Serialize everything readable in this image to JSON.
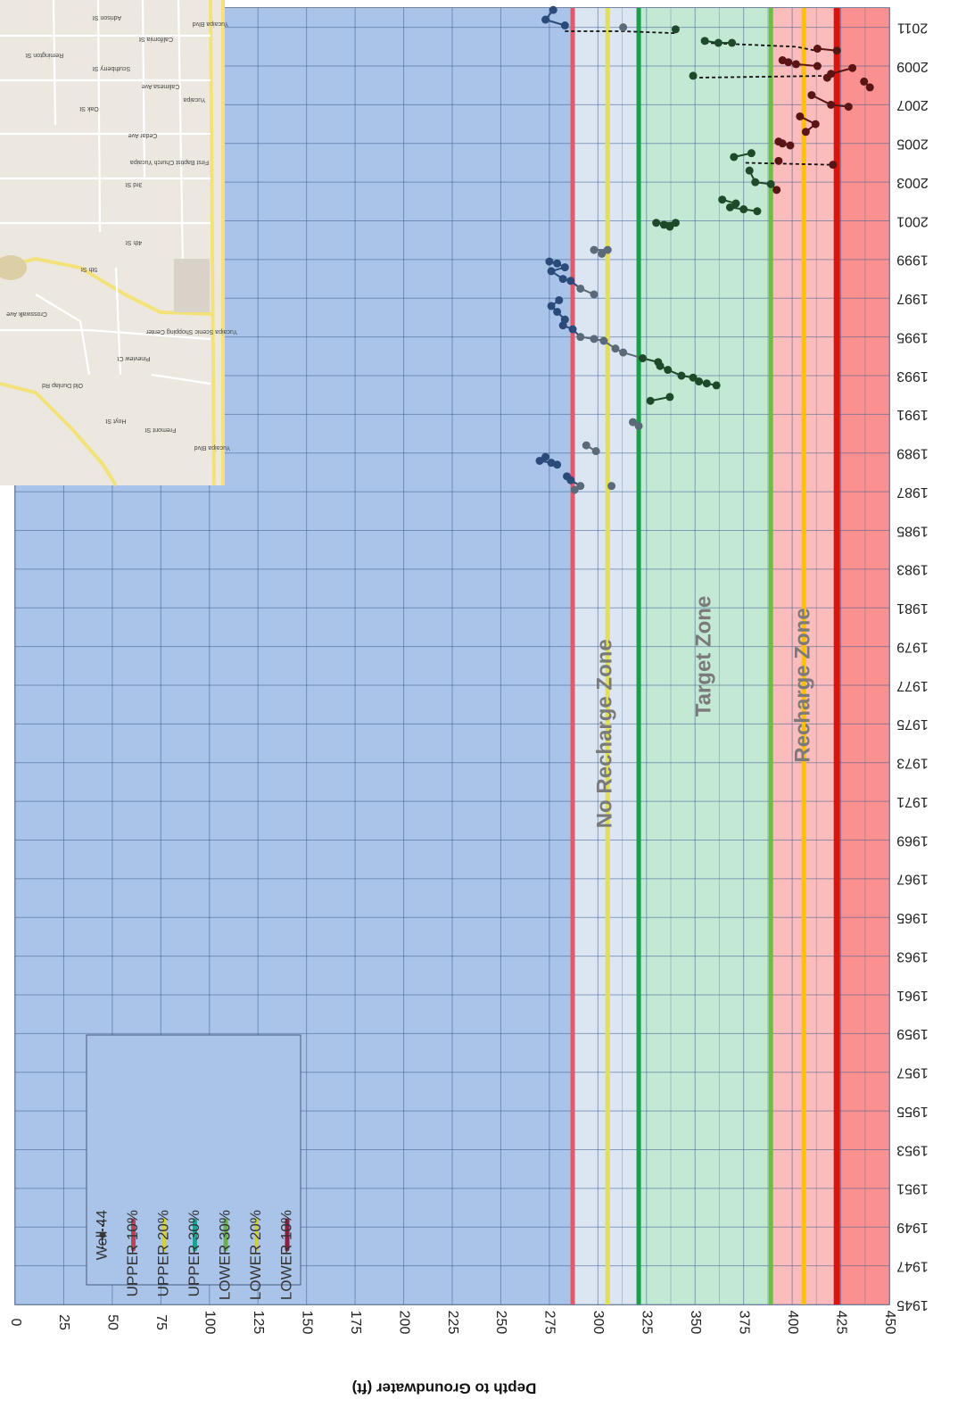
{
  "chart_data": {
    "type": "scatter",
    "title": "",
    "ylabel": "Depth to Groundwater (ft)",
    "xlabel": "",
    "x_axis": {
      "type": "year",
      "range": [
        1945,
        2012
      ],
      "tick_labels": [
        "1945",
        "1947",
        "1949",
        "1951",
        "1953",
        "1955",
        "1957",
        "1959",
        "1961",
        "1963",
        "1965",
        "1967",
        "1969",
        "1971",
        "1973",
        "1975",
        "1977",
        "1979",
        "1981",
        "1983",
        "1985",
        "1987",
        "1989",
        "1991",
        "1993",
        "1995",
        "1997",
        "1999",
        "2001",
        "2003",
        "2005",
        "2007",
        "2009",
        "2011"
      ]
    },
    "y_axis": {
      "range": [
        0,
        450
      ],
      "tick_labels": [
        "0",
        "25",
        "50",
        "75",
        "100",
        "125",
        "150",
        "175",
        "200",
        "225",
        "250",
        "275",
        "300",
        "325",
        "350",
        "375",
        "400",
        "425",
        "450"
      ]
    },
    "grid": true,
    "zones": [
      {
        "name": "above",
        "from": 0,
        "to": 287,
        "color": "#a9c4e8"
      },
      {
        "name": "No Recharge Zone",
        "from": 287,
        "to": 321,
        "color": "#dce6f2"
      },
      {
        "name": "Target Zone",
        "from": 321,
        "to": 389,
        "color": "#c3e8d4"
      },
      {
        "name": "Recharge Zone",
        "from": 389,
        "to": 423,
        "color": "#fcbcbc"
      },
      {
        "name": "below",
        "from": 423,
        "to": 450,
        "color": "#fa9090"
      }
    ],
    "zone_labels": [
      {
        "text": "No Recharge Zone",
        "depth": 304,
        "year": 1974.5
      },
      {
        "text": "Target Zone",
        "depth": 355,
        "year": 1978.5
      },
      {
        "text": "Recharge Zone",
        "depth": 406,
        "year": 1977
      }
    ],
    "reference_lines": [
      {
        "name": "UPPER 10%",
        "depth": 287,
        "color": "#e05a6b"
      },
      {
        "name": "UPPER 20%",
        "depth": 305,
        "color": "#e0e050"
      },
      {
        "name": "UPPER 30%",
        "depth": 321,
        "color": "#1a9e4a"
      },
      {
        "name": "LOWER 30%",
        "depth": 389,
        "color": "#6abf45"
      },
      {
        "name": "LOWER 20%",
        "depth": 406,
        "color": "#ffc000"
      },
      {
        "name": "LOWER 10%",
        "depth": 423,
        "color": "#dd1111"
      }
    ],
    "series": [
      {
        "name": "Well 44",
        "connected_pairs": [
          [
            [
              2010.8,
              283
            ],
            [
              2010.8,
              313
            ],
            [
              2010.7,
              340
            ]
          ],
          [
            [
              2010.2,
              355
            ],
            [
              2010.0,
              402
            ],
            [
              2009.8,
              412
            ]
          ],
          [
            [
              2008.4,
              349
            ],
            [
              2008.5,
              422
            ]
          ],
          [
            [
              2004.0,
              376
            ],
            [
              2003.9,
              420
            ]
          ]
        ],
        "points": [
          {
            "x": 2011.9,
            "y": 277,
            "c": "#2a4a7a"
          },
          {
            "x": 2011.4,
            "y": 273,
            "c": "#2a4a7a"
          },
          {
            "x": 2011.1,
            "y": 283,
            "c": "#2a4a7a"
          },
          {
            "x": 2011.0,
            "y": 313,
            "c": "#5a6a78"
          },
          {
            "x": 2010.9,
            "y": 340,
            "c": "#1e4a2a"
          },
          {
            "x": 2010.3,
            "y": 355,
            "c": "#1e4a2a"
          },
          {
            "x": 2010.2,
            "y": 362,
            "c": "#1e4a2a"
          },
          {
            "x": 2010.2,
            "y": 369,
            "c": "#1e4a2a"
          },
          {
            "x": 2009.9,
            "y": 413,
            "c": "#5a1414"
          },
          {
            "x": 2009.8,
            "y": 423,
            "c": "#5a1414"
          },
          {
            "x": 2009.3,
            "y": 395,
            "c": "#5a1414"
          },
          {
            "x": 2009.2,
            "y": 398,
            "c": "#5a1414"
          },
          {
            "x": 2009.1,
            "y": 402,
            "c": "#5a1414"
          },
          {
            "x": 2009.0,
            "y": 413,
            "c": "#5a1414"
          },
          {
            "x": 2008.9,
            "y": 431,
            "c": "#5a1414"
          },
          {
            "x": 2008.6,
            "y": 420,
            "c": "#5a1414"
          },
          {
            "x": 2008.4,
            "y": 418,
            "c": "#5a1414"
          },
          {
            "x": 2008.5,
            "y": 349,
            "c": "#1e4a2a"
          },
          {
            "x": 2008.2,
            "y": 437,
            "c": "#5a1414"
          },
          {
            "x": 2007.9,
            "y": 440,
            "c": "#5a1414"
          },
          {
            "x": 2007.5,
            "y": 410,
            "c": "#5a1414"
          },
          {
            "x": 2007.0,
            "y": 420,
            "c": "#5a1414"
          },
          {
            "x": 2006.9,
            "y": 429,
            "c": "#5a1414"
          },
          {
            "x": 2006.4,
            "y": 404,
            "c": "#5a1414"
          },
          {
            "x": 2006.0,
            "y": 412,
            "c": "#5a1414"
          },
          {
            "x": 2005.6,
            "y": 407,
            "c": "#5a1414"
          },
          {
            "x": 2005.1,
            "y": 393,
            "c": "#5a1414"
          },
          {
            "x": 2005.0,
            "y": 395,
            "c": "#5a1414"
          },
          {
            "x": 2004.9,
            "y": 399,
            "c": "#5a1414"
          },
          {
            "x": 2004.5,
            "y": 379,
            "c": "#1e4a2a"
          },
          {
            "x": 2004.3,
            "y": 370,
            "c": "#1e4a2a"
          },
          {
            "x": 2004.1,
            "y": 393,
            "c": "#5a1414"
          },
          {
            "x": 2003.9,
            "y": 421,
            "c": "#5a1414"
          },
          {
            "x": 2003.6,
            "y": 378,
            "c": "#1e4a2a"
          },
          {
            "x": 2003.0,
            "y": 381,
            "c": "#1e4a2a"
          },
          {
            "x": 2002.9,
            "y": 389,
            "c": "#1e4a2a"
          },
          {
            "x": 2002.6,
            "y": 392,
            "c": "#5a1414"
          },
          {
            "x": 2002.1,
            "y": 364,
            "c": "#1e4a2a"
          },
          {
            "x": 2001.9,
            "y": 371,
            "c": "#1e4a2a"
          },
          {
            "x": 2001.7,
            "y": 368,
            "c": "#1e4a2a"
          },
          {
            "x": 2001.6,
            "y": 375,
            "c": "#1e4a2a"
          },
          {
            "x": 2001.5,
            "y": 382,
            "c": "#1e4a2a"
          },
          {
            "x": 2000.9,
            "y": 330,
            "c": "#1e4a2a"
          },
          {
            "x": 2000.8,
            "y": 334,
            "c": "#1e4a2a"
          },
          {
            "x": 2000.7,
            "y": 337,
            "c": "#1e4a2a"
          },
          {
            "x": 2000.9,
            "y": 340,
            "c": "#1e4a2a"
          },
          {
            "x": 1999.5,
            "y": 298,
            "c": "#5a6a78"
          },
          {
            "x": 1999.3,
            "y": 302,
            "c": "#5a6a78"
          },
          {
            "x": 1999.5,
            "y": 305,
            "c": "#5a6a78"
          },
          {
            "x": 1998.9,
            "y": 275,
            "c": "#2a4a7a"
          },
          {
            "x": 1998.8,
            "y": 279,
            "c": "#2a4a7a"
          },
          {
            "x": 1998.6,
            "y": 283,
            "c": "#2a4a7a"
          },
          {
            "x": 1998.4,
            "y": 276,
            "c": "#2a4a7a"
          },
          {
            "x": 1998.0,
            "y": 282,
            "c": "#2a4a7a"
          },
          {
            "x": 1997.9,
            "y": 286,
            "c": "#2a4a7a"
          },
          {
            "x": 1997.5,
            "y": 291,
            "c": "#5a6a78"
          },
          {
            "x": 1997.2,
            "y": 298,
            "c": "#5a6a78"
          },
          {
            "x": 1996.9,
            "y": 280,
            "c": "#2a4a7a"
          },
          {
            "x": 1996.6,
            "y": 276,
            "c": "#2a4a7a"
          },
          {
            "x": 1996.3,
            "y": 279,
            "c": "#2a4a7a"
          },
          {
            "x": 1995.9,
            "y": 283,
            "c": "#2a4a7a"
          },
          {
            "x": 1995.6,
            "y": 282,
            "c": "#2a4a7a"
          },
          {
            "x": 1995.4,
            "y": 287,
            "c": "#2a4a7a"
          },
          {
            "x": 1995.0,
            "y": 291,
            "c": "#5a6a78"
          },
          {
            "x": 1994.9,
            "y": 298,
            "c": "#5a6a78"
          },
          {
            "x": 1994.8,
            "y": 303,
            "c": "#5a6a78"
          },
          {
            "x": 1994.4,
            "y": 309,
            "c": "#5a6a78"
          },
          {
            "x": 1994.2,
            "y": 313,
            "c": "#5a6a78"
          },
          {
            "x": 1993.9,
            "y": 323,
            "c": "#1e4a2a"
          },
          {
            "x": 1993.7,
            "y": 331,
            "c": "#1e4a2a"
          },
          {
            "x": 1993.5,
            "y": 332,
            "c": "#1e4a2a"
          },
          {
            "x": 1993.3,
            "y": 336,
            "c": "#1e4a2a"
          },
          {
            "x": 1993.0,
            "y": 343,
            "c": "#1e4a2a"
          },
          {
            "x": 1992.9,
            "y": 349,
            "c": "#1e4a2a"
          },
          {
            "x": 1992.7,
            "y": 352,
            "c": "#1e4a2a"
          },
          {
            "x": 1992.6,
            "y": 356,
            "c": "#1e4a2a"
          },
          {
            "x": 1992.5,
            "y": 361,
            "c": "#1e4a2a"
          },
          {
            "x": 1991.7,
            "y": 327,
            "c": "#1e4a2a"
          },
          {
            "x": 1991.9,
            "y": 337,
            "c": "#1e4a2a"
          },
          {
            "x": 1990.6,
            "y": 318,
            "c": "#5a6a78"
          },
          {
            "x": 1990.4,
            "y": 321,
            "c": "#5a6a78"
          },
          {
            "x": 1989.4,
            "y": 294,
            "c": "#5a6a78"
          },
          {
            "x": 1989.1,
            "y": 299,
            "c": "#5a6a78"
          },
          {
            "x": 1988.8,
            "y": 273,
            "c": "#2a4a7a"
          },
          {
            "x": 1988.5,
            "y": 276,
            "c": "#2a4a7a"
          },
          {
            "x": 1988.6,
            "y": 270,
            "c": "#2a4a7a"
          },
          {
            "x": 1988.4,
            "y": 279,
            "c": "#2a4a7a"
          },
          {
            "x": 1987.8,
            "y": 284,
            "c": "#2a4a7a"
          },
          {
            "x": 1987.6,
            "y": 286,
            "c": "#2a4a7a"
          },
          {
            "x": 1987.3,
            "y": 291,
            "c": "#5a6a78"
          },
          {
            "x": 1987.1,
            "y": 288,
            "c": "#5a6a78"
          },
          {
            "x": 1987.3,
            "y": 307,
            "c": "#5a6a78"
          }
        ]
      }
    ],
    "legend": {
      "placement": "lower-left",
      "entries": [
        "Well 44",
        "UPPER 10%",
        "UPPER 20%",
        "UPPER 30%",
        "LOWER 30%",
        "LOWER 20%",
        "LOWER 10%"
      ],
      "colors": [
        "#3a3a3a",
        "#c0405a",
        "#d4cf3a",
        "#20a090",
        "#6ab04a",
        "#c8d040",
        "#8a2040"
      ]
    }
  },
  "map_inset": {
    "street_labels": [
      "Adrison St",
      "California St",
      "Scuthberry St",
      "Yucaipa Blvd",
      "Yucaipa",
      "Remington St",
      "Calimesa Ave",
      "Oak St",
      "Cedar Ave",
      "3rd St",
      "4th St",
      "5th St",
      "First Baptist Church Yucaipa",
      "Yucaipa Scenic Shopping Center",
      "Crosswalk Ave",
      "Old Dunlap Rd",
      "Pineview Ct",
      "Fremont St",
      "Hoyt St",
      "Yucaipa Blvd"
    ]
  }
}
